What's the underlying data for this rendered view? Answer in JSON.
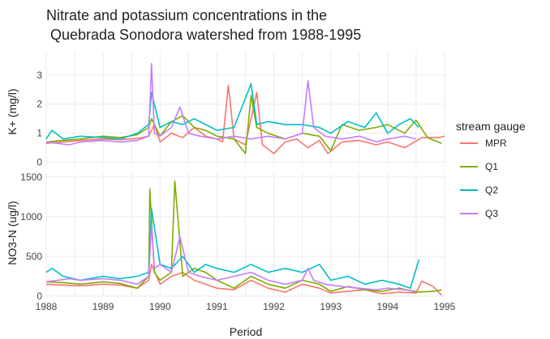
{
  "chart_data": {
    "type": "line",
    "title_lines": [
      "Nitrate and potassium concentrations in the",
      " Quebrada Sonodora watershed from 1988-1995"
    ],
    "xlabel": "Period",
    "xlim": [
      1988,
      1995
    ],
    "x_ticks": [
      "1988",
      "1989",
      "1990",
      "1991",
      "1992",
      "1993",
      "1994",
      "1995"
    ],
    "legend": {
      "title": "stream gauge",
      "position": "right"
    },
    "colors": {
      "MPR": "#F8766D",
      "Q1": "#7CAE00",
      "Q2": "#00BFC4",
      "Q3": "#C77CFF"
    },
    "grid": true,
    "panels": [
      {
        "name": "potassium",
        "ylabel": "K+ (mg/l)",
        "ylim": [
          -0.15,
          3.8
        ],
        "y_ticks": [
          "0",
          "1",
          "2",
          "3"
        ],
        "y_tick_values": [
          0,
          1,
          2,
          3
        ],
        "series": [
          {
            "name": "MPR",
            "x": [
              1988.0,
              1988.3,
              1988.6,
              1989.0,
              1989.3,
              1989.6,
              1989.8,
              1989.9,
              1990.0,
              1990.2,
              1990.4,
              1990.6,
              1990.8,
              1991.0,
              1991.1,
              1991.2,
              1991.3,
              1991.5,
              1991.7,
              1991.8,
              1992.0,
              1992.2,
              1992.4,
              1992.6,
              1992.8,
              1992.95,
              1993.2,
              1993.5,
              1993.8,
              1994.0,
              1994.3,
              1994.6,
              1994.9,
              1995.0
            ],
            "values": [
              0.65,
              0.7,
              0.75,
              0.8,
              0.78,
              0.82,
              0.9,
              1.3,
              0.7,
              1.0,
              0.85,
              1.2,
              0.9,
              0.8,
              0.7,
              2.65,
              0.8,
              0.6,
              2.4,
              0.6,
              0.3,
              0.7,
              0.8,
              0.5,
              0.75,
              0.3,
              0.7,
              0.75,
              0.6,
              0.7,
              0.5,
              0.85,
              0.85,
              0.9
            ]
          },
          {
            "name": "Q1",
            "x": [
              1988.0,
              1988.3,
              1988.6,
              1989.0,
              1989.3,
              1989.6,
              1989.8,
              1989.85,
              1990.0,
              1990.2,
              1990.4,
              1990.6,
              1990.8,
              1991.0,
              1991.3,
              1991.5,
              1991.6,
              1991.7,
              1991.9,
              1992.2,
              1992.5,
              1992.8,
              1993.0,
              1993.2,
              1993.5,
              1993.8,
              1994.0,
              1994.3,
              1994.5,
              1994.7,
              1994.95
            ],
            "values": [
              0.7,
              0.75,
              0.8,
              0.9,
              0.85,
              0.95,
              1.2,
              1.5,
              0.9,
              1.4,
              1.6,
              1.2,
              1.1,
              0.9,
              0.8,
              0.3,
              2.3,
              1.2,
              1.0,
              0.8,
              1.0,
              0.9,
              0.4,
              1.3,
              1.1,
              1.2,
              1.3,
              1.0,
              1.45,
              0.85,
              0.65
            ]
          },
          {
            "name": "Q2",
            "x": [
              1988.0,
              1988.1,
              1988.3,
              1988.6,
              1989.0,
              1989.3,
              1989.6,
              1989.8,
              1989.85,
              1990.0,
              1990.2,
              1990.4,
              1990.6,
              1990.8,
              1991.0,
              1991.3,
              1991.6,
              1991.7,
              1991.9,
              1992.2,
              1992.5,
              1992.8,
              1993.0,
              1993.3,
              1993.6,
              1993.8,
              1994.0,
              1994.2,
              1994.4,
              1994.55
            ],
            "values": [
              0.8,
              1.1,
              0.8,
              0.9,
              0.85,
              0.8,
              1.0,
              1.3,
              2.4,
              1.2,
              1.4,
              1.3,
              1.5,
              1.3,
              1.1,
              1.2,
              2.7,
              1.3,
              1.4,
              1.3,
              1.3,
              1.2,
              1.0,
              1.4,
              1.2,
              1.7,
              1.0,
              1.3,
              1.5,
              1.2
            ]
          },
          {
            "name": "Q3",
            "x": [
              1988.0,
              1988.2,
              1988.4,
              1988.6,
              1989.0,
              1989.3,
              1989.6,
              1989.8,
              1989.85,
              1989.9,
              1990.0,
              1990.2,
              1990.35,
              1990.5,
              1990.7,
              1991.0,
              1991.3,
              1991.6,
              1991.9,
              1992.2,
              1992.5,
              1992.6,
              1992.7,
              1992.9,
              1993.2,
              1993.5,
              1993.8,
              1994.0,
              1994.3,
              1994.5
            ],
            "values": [
              0.7,
              0.65,
              0.6,
              0.7,
              0.75,
              0.7,
              0.75,
              0.9,
              3.4,
              1.0,
              0.9,
              1.2,
              1.9,
              1.0,
              0.9,
              0.8,
              0.9,
              0.8,
              0.9,
              0.8,
              1.0,
              2.8,
              1.2,
              0.9,
              0.8,
              0.9,
              0.7,
              0.8,
              0.9,
              0.8
            ]
          }
        ]
      },
      {
        "name": "nitrate",
        "ylabel": "NO3-N (ug/l)",
        "ylim": [
          0,
          1550
        ],
        "y_ticks": [
          "0",
          "500",
          "1000",
          "1500"
        ],
        "y_tick_values": [
          0,
          500,
          1000,
          1500
        ],
        "series": [
          {
            "name": "MPR",
            "x": [
              1988.0,
              1988.3,
              1988.6,
              1989.0,
              1989.3,
              1989.6,
              1989.8,
              1989.85,
              1990.0,
              1990.2,
              1990.4,
              1990.6,
              1990.8,
              1991.0,
              1991.3,
              1991.6,
              1991.9,
              1992.2,
              1992.5,
              1992.8,
              1993.0,
              1993.3,
              1993.6,
              1993.9,
              1994.2,
              1994.5,
              1994.6,
              1994.8,
              1994.95
            ],
            "values": [
              150,
              140,
              130,
              150,
              140,
              100,
              200,
              400,
              150,
              250,
              300,
              200,
              150,
              100,
              80,
              200,
              100,
              50,
              150,
              100,
              40,
              60,
              80,
              30,
              50,
              40,
              190,
              120,
              10
            ]
          },
          {
            "name": "Q1",
            "x": [
              1988.0,
              1988.3,
              1988.6,
              1989.0,
              1989.3,
              1989.6,
              1989.8,
              1989.82,
              1989.9,
              1990.0,
              1990.2,
              1990.26,
              1990.4,
              1990.6,
              1990.8,
              1991.0,
              1991.3,
              1991.6,
              1991.9,
              1992.2,
              1992.5,
              1992.8,
              1993.0,
              1993.3,
              1993.6,
              1993.9,
              1994.2,
              1994.5,
              1994.8,
              1994.95
            ],
            "values": [
              180,
              170,
              150,
              180,
              160,
              100,
              250,
              1350,
              300,
              200,
              300,
              1450,
              250,
              350,
              300,
              200,
              100,
              250,
              150,
              100,
              200,
              150,
              60,
              120,
              80,
              60,
              100,
              50,
              60,
              80
            ]
          },
          {
            "name": "Q2",
            "x": [
              1988.0,
              1988.1,
              1988.3,
              1988.6,
              1989.0,
              1989.3,
              1989.6,
              1989.8,
              1989.85,
              1990.0,
              1990.2,
              1990.4,
              1990.6,
              1990.8,
              1991.0,
              1991.3,
              1991.6,
              1991.9,
              1992.2,
              1992.5,
              1992.8,
              1993.0,
              1993.3,
              1993.6,
              1993.9,
              1994.2,
              1994.4,
              1994.55
            ],
            "values": [
              300,
              350,
              250,
              200,
              250,
              220,
              250,
              300,
              1100,
              400,
              350,
              500,
              300,
              400,
              350,
              300,
              400,
              300,
              350,
              300,
              400,
              200,
              250,
              150,
              200,
              150,
              100,
              460
            ]
          },
          {
            "name": "Q3",
            "x": [
              1988.0,
              1988.2,
              1988.4,
              1988.6,
              1989.0,
              1989.3,
              1989.6,
              1989.8,
              1989.85,
              1989.9,
              1990.0,
              1990.2,
              1990.35,
              1990.5,
              1990.7,
              1991.0,
              1991.3,
              1991.6,
              1991.9,
              1992.2,
              1992.5,
              1992.6,
              1992.7,
              1992.9,
              1993.2,
              1993.5,
              1993.8,
              1994.0,
              1994.3,
              1994.5
            ],
            "values": [
              180,
              200,
              220,
              200,
              220,
              200,
              150,
              250,
              900,
              350,
              400,
              300,
              750,
              300,
              250,
              200,
              250,
              300,
              200,
              150,
              200,
              350,
              200,
              150,
              120,
              100,
              80,
              100,
              80,
              60
            ]
          }
        ]
      }
    ]
  }
}
